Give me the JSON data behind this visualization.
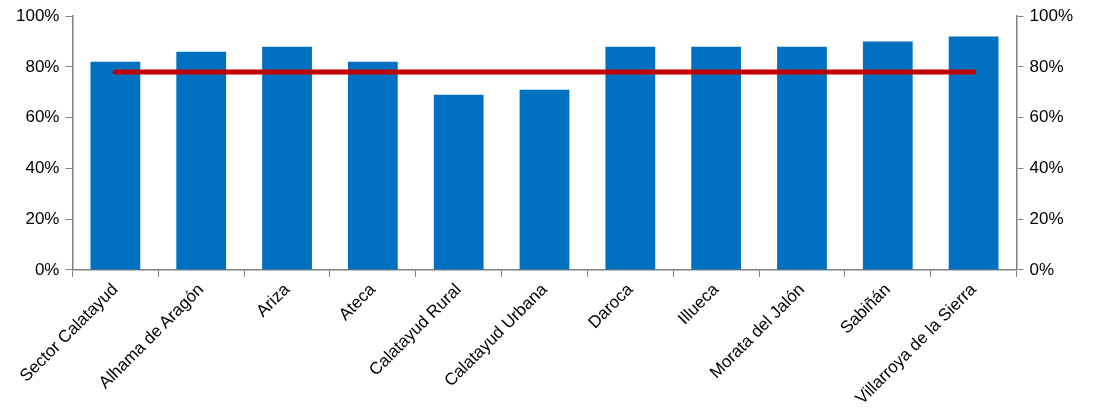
{
  "chart_data": {
    "type": "bar",
    "categories": [
      "Sector Calatayud",
      "Alhama de Aragón",
      "Ariza",
      "Ateca",
      "Calatayud Rural",
      "Calatayud Urbana",
      "Daroca",
      "Illueca",
      "Morata del Jalón",
      "Sabiñán",
      "Villarroya de la Sierra"
    ],
    "series": [
      {
        "color": "#0070c0",
        "values": [
          82,
          86,
          88,
          82,
          69,
          71,
          88,
          88,
          88,
          90,
          92
        ]
      },
      {
        "type": "line",
        "color": "#c00000",
        "values": [
          78,
          78,
          78,
          78,
          78,
          78,
          78,
          78,
          78,
          78,
          78
        ]
      }
    ],
    "ylim": [
      0,
      100
    ],
    "yticks": [
      {
        "value": 0,
        "label": "0%"
      },
      {
        "value": 20,
        "label": "20%"
      },
      {
        "value": 40,
        "label": "40%"
      },
      {
        "value": 60,
        "label": "60%"
      },
      {
        "value": 80,
        "label": "80%"
      },
      {
        "value": 100,
        "label": "100%"
      }
    ],
    "y2lim": [
      0,
      100
    ],
    "y2ticks": [
      {
        "value": 0,
        "label": "0%"
      },
      {
        "value": 20,
        "label": "20%"
      },
      {
        "value": 40,
        "label": "40%"
      },
      {
        "value": 60,
        "label": "60%"
      },
      {
        "value": 80,
        "label": "80%"
      },
      {
        "value": 100,
        "label": "100%"
      }
    ],
    "grid": false,
    "legend": false,
    "marker": "none",
    "line_style": "solid"
  }
}
